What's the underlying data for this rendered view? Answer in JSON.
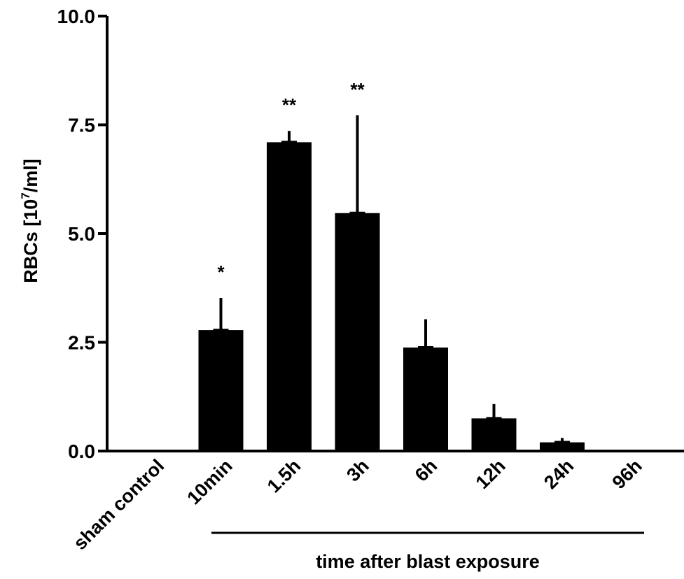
{
  "chart_data": {
    "type": "bar",
    "title": "",
    "ylabel": {
      "prefix": "RBCs [10",
      "superscript": "7",
      "suffix": "/ml]"
    },
    "xlabel": "time after blast exposure",
    "ylim": [
      0,
      10
    ],
    "yticks": [
      "0.0",
      "2.5",
      "5.0",
      "7.5",
      "10.0"
    ],
    "categories": [
      "sham control",
      "10min",
      "1.5h",
      "3h",
      "6h",
      "12h",
      "24h",
      "96h"
    ],
    "values": [
      0.02,
      2.78,
      7.1,
      5.47,
      2.38,
      0.75,
      0.2,
      0.01
    ],
    "error_upper": [
      0.02,
      3.52,
      7.36,
      7.72,
      3.03,
      1.08,
      0.3,
      0.01
    ],
    "significance": [
      "",
      "*",
      "**",
      "**",
      "",
      "",
      "",
      ""
    ],
    "bar_color": "#000000",
    "grid": false,
    "legend": "none"
  }
}
